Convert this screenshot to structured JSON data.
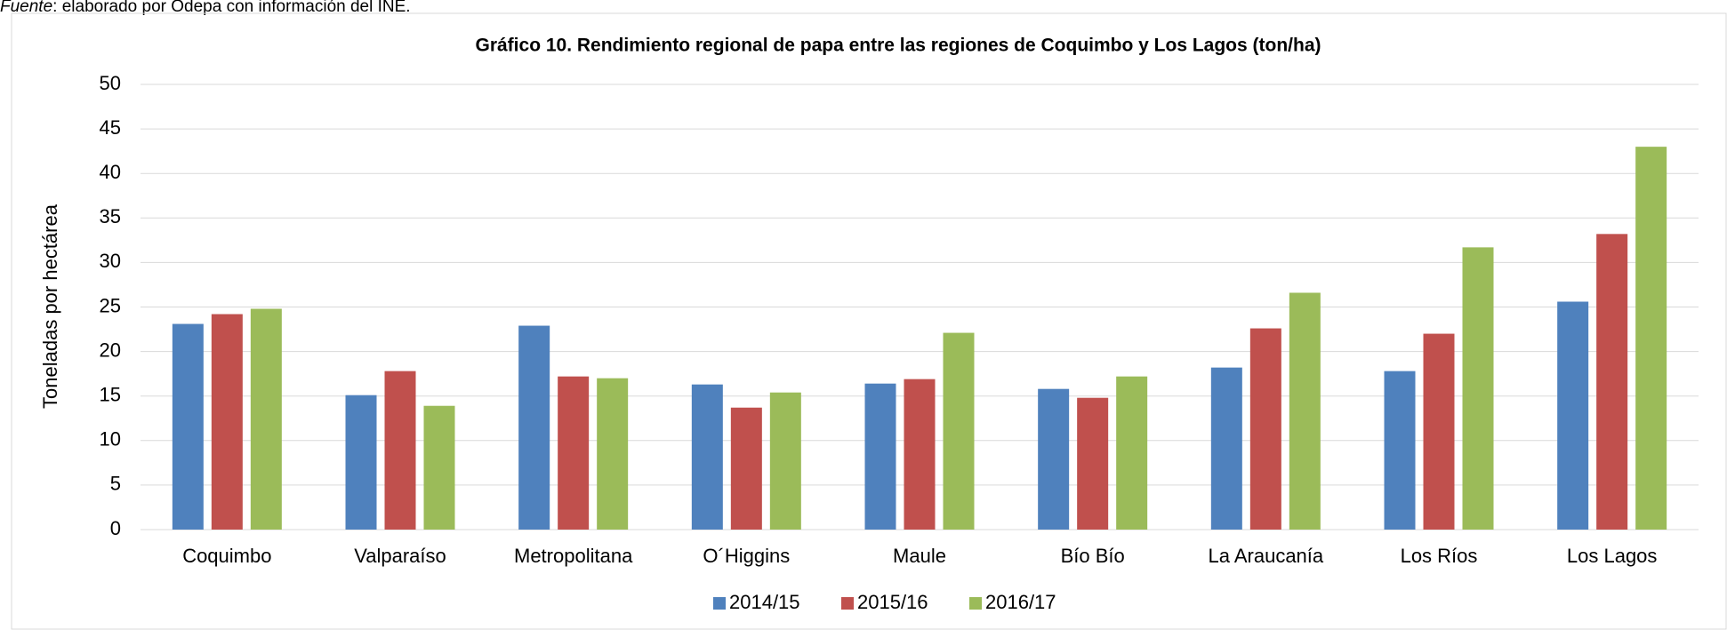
{
  "source_label": "Fuente",
  "source_text": ": elaborado por Odepa con información del INE.",
  "chart_data": {
    "type": "bar",
    "title": "Gráfico 10. Rendimiento regional de papa entre las regiones de Coquimbo y Los Lagos (ton/ha)",
    "y_label": "Toneladas por hectárea",
    "categories": [
      "Coquimbo",
      "Valparaíso",
      "Metropolitana",
      "O´Higgins",
      "Maule",
      "Bío Bío",
      "La Araucanía",
      "Los Ríos",
      "Los Lagos"
    ],
    "series": [
      {
        "name": "2014/15",
        "color": "#4f81bd",
        "values": [
          23.1,
          15.1,
          22.9,
          16.3,
          16.4,
          15.8,
          18.2,
          17.8,
          25.6
        ]
      },
      {
        "name": "2015/16",
        "color": "#c0504d",
        "values": [
          24.2,
          17.8,
          17.2,
          13.7,
          16.9,
          14.8,
          22.6,
          22.0,
          33.2
        ]
      },
      {
        "name": "2016/17",
        "color": "#9bbb59",
        "values": [
          24.8,
          13.9,
          17.0,
          15.4,
          22.1,
          17.2,
          26.6,
          31.7,
          43.0
        ]
      }
    ],
    "ylim": [
      0,
      50
    ],
    "yticks": [
      0,
      5,
      10,
      15,
      20,
      25,
      30,
      35,
      40,
      45,
      50
    ],
    "grid": true,
    "legend": "bottom"
  }
}
